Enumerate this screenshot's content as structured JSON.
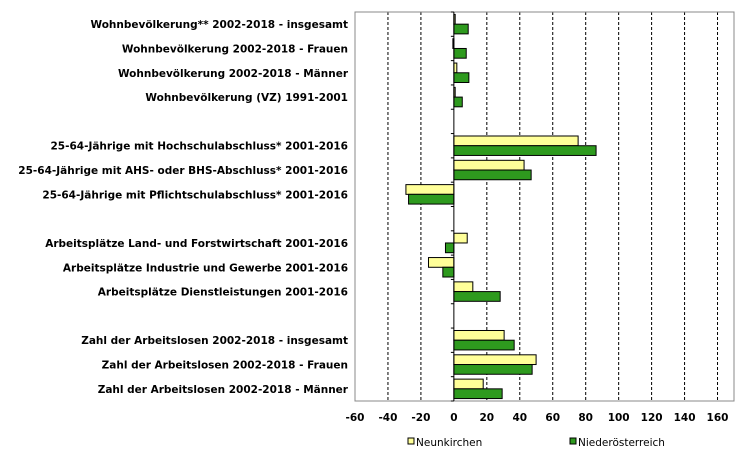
{
  "chart_data": {
    "type": "bar",
    "orientation": "horizontal",
    "title": "",
    "xlabel": "",
    "ylabel": "",
    "xlim": [
      -60,
      170
    ],
    "xticks": [
      -60,
      -40,
      -20,
      0,
      20,
      40,
      60,
      80,
      100,
      120,
      140,
      160
    ],
    "grid": "vertical dashed",
    "legend_position": "bottom",
    "categories": [
      "Wohnbevölkerung** 2002-2018 - insgesamt",
      "Wohnbevölkerung 2002-2018 - Frauen",
      "Wohnbevölkerung 2002-2018 - Männer",
      "Wohnbevölkerung (VZ) 1991-2001",
      "",
      "25-64-Jährige mit Hochschulabschluss* 2001-2016",
      "25-64-Jährige mit AHS- oder BHS-Abschluss* 2001-2016",
      "25-64-Jährige mit Pflichtschulabschluss* 2001-2016",
      "",
      "Arbeitsplätze Land- und Forstwirtschaft 2001-2016",
      "Arbeitsplätze Industrie und Gewerbe 2001-2016",
      "Arbeitsplätze Dienstleistungen 2001-2016",
      "",
      "Zahl der Arbeitslosen 2002-2018 - insgesamt",
      "Zahl der Arbeitslosen 2002-2018 - Frauen",
      "Zahl der Arbeitslosen 2002-2018 - Männer"
    ],
    "series": [
      {
        "name": "Neunkirchen",
        "color": "#ffff99",
        "values": [
          0.8,
          -0.6,
          1.8,
          0.8,
          null,
          75.4,
          42.6,
          -29.1,
          null,
          8.1,
          -15.4,
          11.5,
          null,
          30.5,
          49.9,
          17.8
        ]
      },
      {
        "name": "Niederösterreich",
        "color": "#2e9a1e",
        "values": [
          8.7,
          7.5,
          9.1,
          5.1,
          null,
          86.3,
          46.9,
          -27.5,
          null,
          -5.1,
          -6.7,
          28.1,
          null,
          36.6,
          47.5,
          29.3
        ]
      }
    ]
  }
}
